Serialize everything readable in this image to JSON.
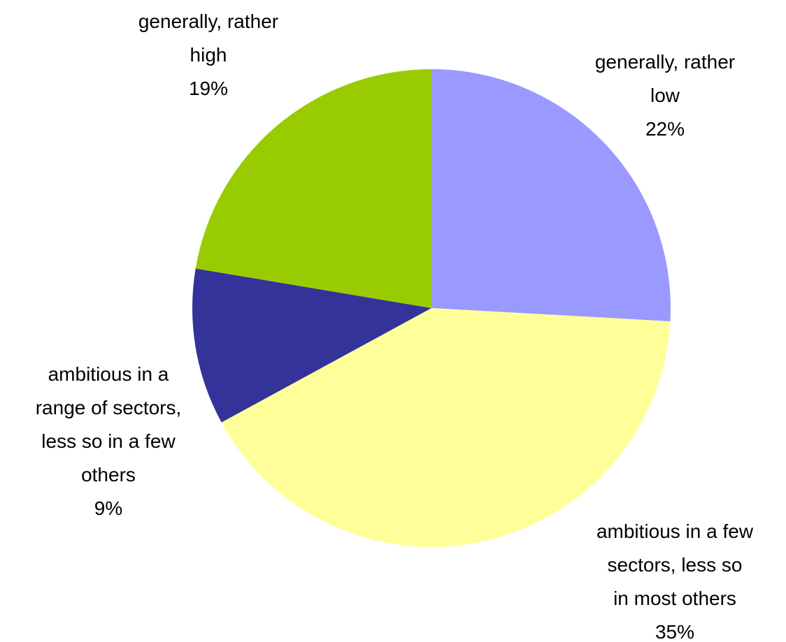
{
  "chart_data": {
    "type": "pie",
    "slices": [
      {
        "label_lines": [
          "generally, rather",
          "low"
        ],
        "value": 22,
        "value_label": "22%",
        "color": "#9999FF"
      },
      {
        "label_lines": [
          "ambitious in a few",
          "sectors, less so",
          "in most others"
        ],
        "value": 35,
        "value_label": "35%",
        "color": "#FFFF99"
      },
      {
        "label_lines": [
          "ambitious in a",
          "range of sectors,",
          "less so in a few",
          "others"
        ],
        "value": 9,
        "value_label": "9%",
        "color": "#333399"
      },
      {
        "label_lines": [
          "generally, rather",
          "high"
        ],
        "value": 19,
        "value_label": "19%",
        "color": "#99CC00"
      }
    ],
    "start_angle_deg": 0,
    "direction": "clockwise",
    "legend": "none",
    "data_labels": "outside"
  }
}
